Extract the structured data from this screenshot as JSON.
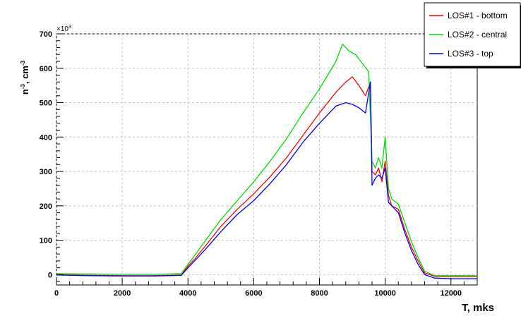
{
  "chart_data": {
    "type": "line",
    "title": "",
    "xlabel": "T, mks",
    "ylabel_base": "n",
    "ylabel_sup": "-3",
    "ylabel_unit": ", cm",
    "ylabel_unit_sup": "-3",
    "y_multiplier_base": "×10",
    "y_multiplier_exp": "3",
    "xlim": [
      0,
      12800
    ],
    "ylim": [
      -30,
      700
    ],
    "x_ticks": [
      0,
      2000,
      4000,
      6000,
      8000,
      10000,
      12000
    ],
    "y_ticks": [
      0,
      100,
      200,
      300,
      400,
      500,
      600,
      700
    ],
    "grid": true,
    "legend_position": "top-right",
    "series": [
      {
        "name": "LOS#1 - bottom",
        "color": "#ff0000",
        "x": [
          0,
          1000,
          2000,
          3000,
          3800,
          4000,
          4200,
          4500,
          5000,
          5500,
          6000,
          6500,
          7000,
          7500,
          8000,
          8500,
          8800,
          9000,
          9200,
          9400,
          9550,
          9600,
          9700,
          9800,
          9900,
          10000,
          10100,
          10200,
          10400,
          10600,
          10800,
          11000,
          11200,
          11500,
          12000,
          12800
        ],
        "y": [
          0,
          -2,
          -3,
          -3,
          -1,
          25,
          45,
          80,
          140,
          190,
          235,
          285,
          340,
          405,
          470,
          530,
          560,
          575,
          550,
          520,
          560,
          300,
          290,
          310,
          270,
          330,
          230,
          200,
          190,
          130,
          80,
          40,
          5,
          -5,
          -5,
          -5
        ]
      },
      {
        "name": "LOS#2 - central",
        "color": "#00dd00",
        "x": [
          0,
          1000,
          2000,
          3000,
          3800,
          4000,
          4200,
          4500,
          5000,
          5500,
          6000,
          6500,
          7000,
          7500,
          8000,
          8500,
          8700,
          8900,
          9100,
          9300,
          9500,
          9600,
          9700,
          9800,
          9900,
          10000,
          10100,
          10200,
          10400,
          10600,
          10800,
          11000,
          11200,
          11500,
          12000,
          12800
        ],
        "y": [
          3,
          2,
          1,
          1,
          3,
          30,
          55,
          95,
          160,
          215,
          270,
          330,
          395,
          470,
          540,
          620,
          670,
          650,
          640,
          615,
          590,
          330,
          310,
          340,
          310,
          400,
          250,
          220,
          205,
          150,
          95,
          50,
          10,
          -3,
          -3,
          -3
        ]
      },
      {
        "name": "LOS#3 - top",
        "color": "#0000ff",
        "x": [
          0,
          1000,
          2000,
          3000,
          3800,
          4000,
          4200,
          4500,
          5000,
          5500,
          6000,
          6500,
          7000,
          7500,
          8000,
          8500,
          8800,
          9000,
          9200,
          9400,
          9550,
          9600,
          9700,
          9800,
          9900,
          10000,
          10100,
          10200,
          10400,
          10600,
          10800,
          11000,
          11200,
          11500,
          12000,
          12800
        ],
        "y": [
          -1,
          -3,
          -4,
          -4,
          -2,
          20,
          40,
          70,
          125,
          175,
          215,
          265,
          320,
          385,
          440,
          490,
          500,
          495,
          485,
          470,
          560,
          260,
          280,
          290,
          280,
          310,
          210,
          200,
          180,
          120,
          70,
          30,
          0,
          -10,
          -12,
          -12
        ]
      }
    ]
  }
}
